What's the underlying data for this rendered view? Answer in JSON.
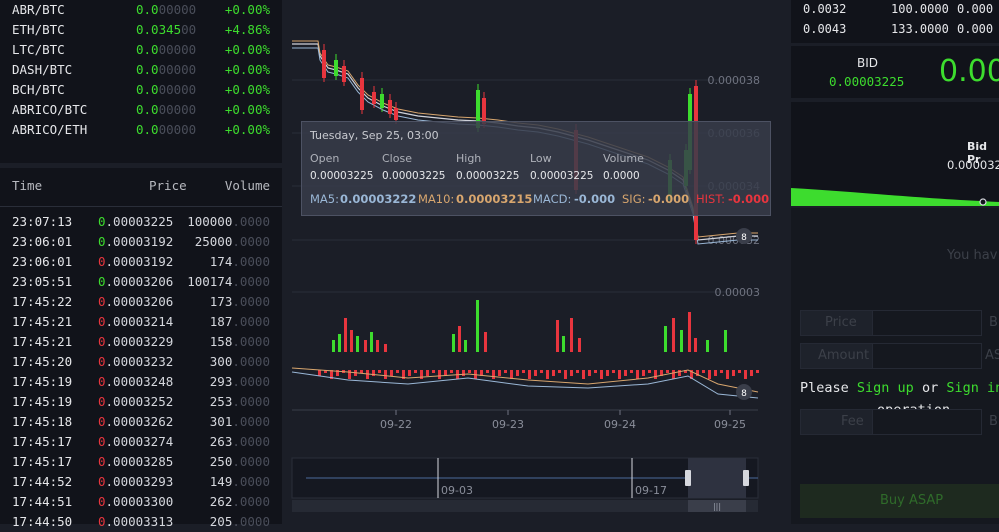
{
  "markets": [
    {
      "pair": "ABR/BTC",
      "price_main": "0.0",
      "price_dim": "00000",
      "change": "+0.00%",
      "color": "green"
    },
    {
      "pair": "ETH/BTC",
      "price_main": "0.0345",
      "price_dim": "00",
      "change": "+4.86%",
      "color": "green"
    },
    {
      "pair": "LTC/BTC",
      "price_main": "0.0",
      "price_dim": "00000",
      "change": "+0.00%",
      "color": "green"
    },
    {
      "pair": "DASH/BTC",
      "price_main": "0.0",
      "price_dim": "00000",
      "change": "+0.00%",
      "color": "green"
    },
    {
      "pair": "BCH/BTC",
      "price_main": "0.0",
      "price_dim": "00000",
      "change": "+0.00%",
      "color": "green"
    },
    {
      "pair": "ABRICO/BTC",
      "price_main": "0.0",
      "price_dim": "00000",
      "change": "+0.00%",
      "color": "green"
    },
    {
      "pair": "ABRICO/ETH",
      "price_main": "0.0",
      "price_dim": "00000",
      "change": "+0.00%",
      "color": "green"
    }
  ],
  "trades": {
    "headers": {
      "time": "Time",
      "price": "Price",
      "volume": "Volume"
    },
    "rows": [
      {
        "time": "23:07:13",
        "lead": "0",
        "rest": ".00003225",
        "vol_main": "100000",
        "vol_dim": ".0000",
        "side": "buy"
      },
      {
        "time": "23:06:01",
        "lead": "0",
        "rest": ".00003192",
        "vol_main": "25000",
        "vol_dim": ".0000",
        "side": "buy"
      },
      {
        "time": "23:06:01",
        "lead": "0",
        "rest": ".00003192",
        "vol_main": "174",
        "vol_dim": ".0000",
        "side": "sell"
      },
      {
        "time": "23:05:51",
        "lead": "0",
        "rest": ".00003206",
        "vol_main": "100174",
        "vol_dim": ".0000",
        "side": "buy"
      },
      {
        "time": "17:45:22",
        "lead": "0",
        "rest": ".00003206",
        "vol_main": "173",
        "vol_dim": ".0000",
        "side": "sell"
      },
      {
        "time": "17:45:21",
        "lead": "0",
        "rest": ".00003214",
        "vol_main": "187",
        "vol_dim": ".0000",
        "side": "sell"
      },
      {
        "time": "17:45:21",
        "lead": "0",
        "rest": ".00003229",
        "vol_main": "158",
        "vol_dim": ".0000",
        "side": "sell"
      },
      {
        "time": "17:45:20",
        "lead": "0",
        "rest": ".00003232",
        "vol_main": "300",
        "vol_dim": ".0000",
        "side": "sell"
      },
      {
        "time": "17:45:19",
        "lead": "0",
        "rest": ".00003248",
        "vol_main": "293",
        "vol_dim": ".0000",
        "side": "sell"
      },
      {
        "time": "17:45:19",
        "lead": "0",
        "rest": ".00003252",
        "vol_main": "253",
        "vol_dim": ".0000",
        "side": "sell"
      },
      {
        "time": "17:45:18",
        "lead": "0",
        "rest": ".00003262",
        "vol_main": "301",
        "vol_dim": ".0000",
        "side": "sell"
      },
      {
        "time": "17:45:17",
        "lead": "0",
        "rest": ".00003274",
        "vol_main": "263",
        "vol_dim": ".0000",
        "side": "sell"
      },
      {
        "time": "17:45:17",
        "lead": "0",
        "rest": ".00003285",
        "vol_main": "250",
        "vol_dim": ".0000",
        "side": "sell"
      },
      {
        "time": "17:44:52",
        "lead": "0",
        "rest": ".00003293",
        "vol_main": "149",
        "vol_dim": ".0000",
        "side": "sell"
      },
      {
        "time": "17:44:51",
        "lead": "0",
        "rest": ".00003300",
        "vol_main": "262",
        "vol_dim": ".0000",
        "side": "sell"
      },
      {
        "time": "17:44:50",
        "lead": "0",
        "rest": ".00003313",
        "vol_main": "205",
        "vol_dim": ".0000",
        "side": "sell"
      }
    ]
  },
  "chart": {
    "y_labels": [
      "0.000038",
      "0.000036",
      "0.000034",
      "0.000032",
      "0.00003"
    ],
    "x_labels": [
      "09-22",
      "09-23",
      "09-24",
      "09-25"
    ],
    "marker_price": "8",
    "marker_macd": "8",
    "zoom_labels": [
      "09-03",
      "09-17"
    ],
    "scroll_grip": "|||"
  },
  "tooltip": {
    "date": "Tuesday, Sep 25, 03:00",
    "labels": {
      "open": "Open",
      "close": "Close",
      "high": "High",
      "low": "Low",
      "volume": "Volume"
    },
    "values": {
      "open": "0.00003225",
      "close": "0.00003225",
      "high": "0.00003225",
      "low": "0.00003225",
      "volume": "0.0000"
    },
    "ma5_label": "MA5:",
    "ma5_value": "0.00003222",
    "ma10_label": "MA10:",
    "ma10_value": "0.00003215",
    "macd_label": "MACD:",
    "macd_value": "-0.000",
    "sig_label": "SIG:",
    "sig_value": "-0.000",
    "hist_label": "HIST:",
    "hist_value": "-0.000"
  },
  "orderbook": [
    {
      "price": "0.0032",
      "amount": "100.0000",
      "total": "0.000"
    },
    {
      "price": "0.0043",
      "amount": "133.0000",
      "total": "0.000"
    }
  ],
  "bid": {
    "label": "BID",
    "value": "0.00003225",
    "big": "0.00"
  },
  "depth": {
    "title": "Bid Pr",
    "value": "0.000032"
  },
  "form": {
    "you_have": "You hav",
    "price_label": "Price",
    "price_unit": "B",
    "amount_label": "Amount",
    "amount_unit": "AS",
    "please": "Please ",
    "sign_up": "Sign up",
    "or": " or ",
    "sign_in": "Sign in",
    "operation": "operation",
    "fee_label": "Fee",
    "fee_unit": "B",
    "buy_button": "Buy ASAP"
  },
  "colors": {
    "up": "#3ddc2e",
    "down": "#e8353e",
    "ma5": "#9ab7d6",
    "ma10": "#d8a66e"
  }
}
